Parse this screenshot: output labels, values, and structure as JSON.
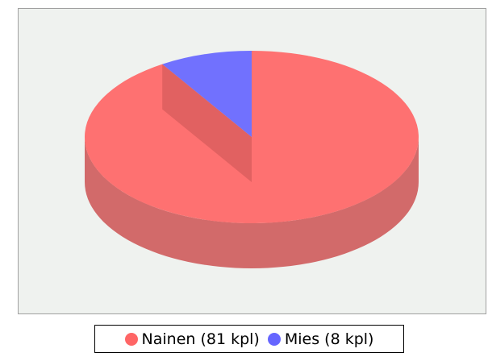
{
  "chart_data": {
    "type": "pie3d",
    "categories": [
      "Nainen (81 kpl)",
      "Mies (8 kpl)"
    ],
    "values": [
      81,
      8
    ],
    "colors": [
      "#ff6666",
      "#6666ff"
    ]
  }
}
